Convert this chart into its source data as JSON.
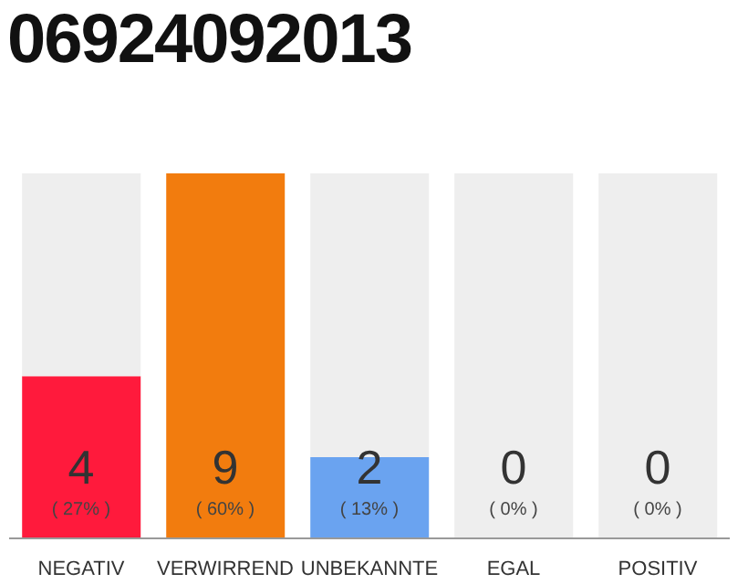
{
  "chart_data": {
    "type": "bar",
    "title": "06924092013",
    "categories": [
      "NEGATIV",
      "VERWIRREND",
      "UNBEKANNTE",
      "EGAL",
      "POSITIV"
    ],
    "stacked": true,
    "series": [
      {
        "values": [
          4,
          9,
          2,
          0,
          0
        ],
        "colors": [
          "#ff1a3c",
          "#f27c0e",
          "#6aa3f0",
          "#cccccc",
          "#cccccc"
        ],
        "value_labels": [
          "4",
          "9",
          "2",
          null,
          null
        ]
      },
      {
        "values": [
          5,
          0,
          7,
          9,
          9
        ],
        "color": "#eeeeee"
      }
    ],
    "ylim": [
      0,
      9
    ],
    "tick_labels": "x",
    "grid": false,
    "legend": false,
    "annotations": [
      "( 27% )",
      "( 60% )",
      "( 13% )",
      "( 0% )",
      "( 0% )",
      "0",
      "0"
    ]
  }
}
